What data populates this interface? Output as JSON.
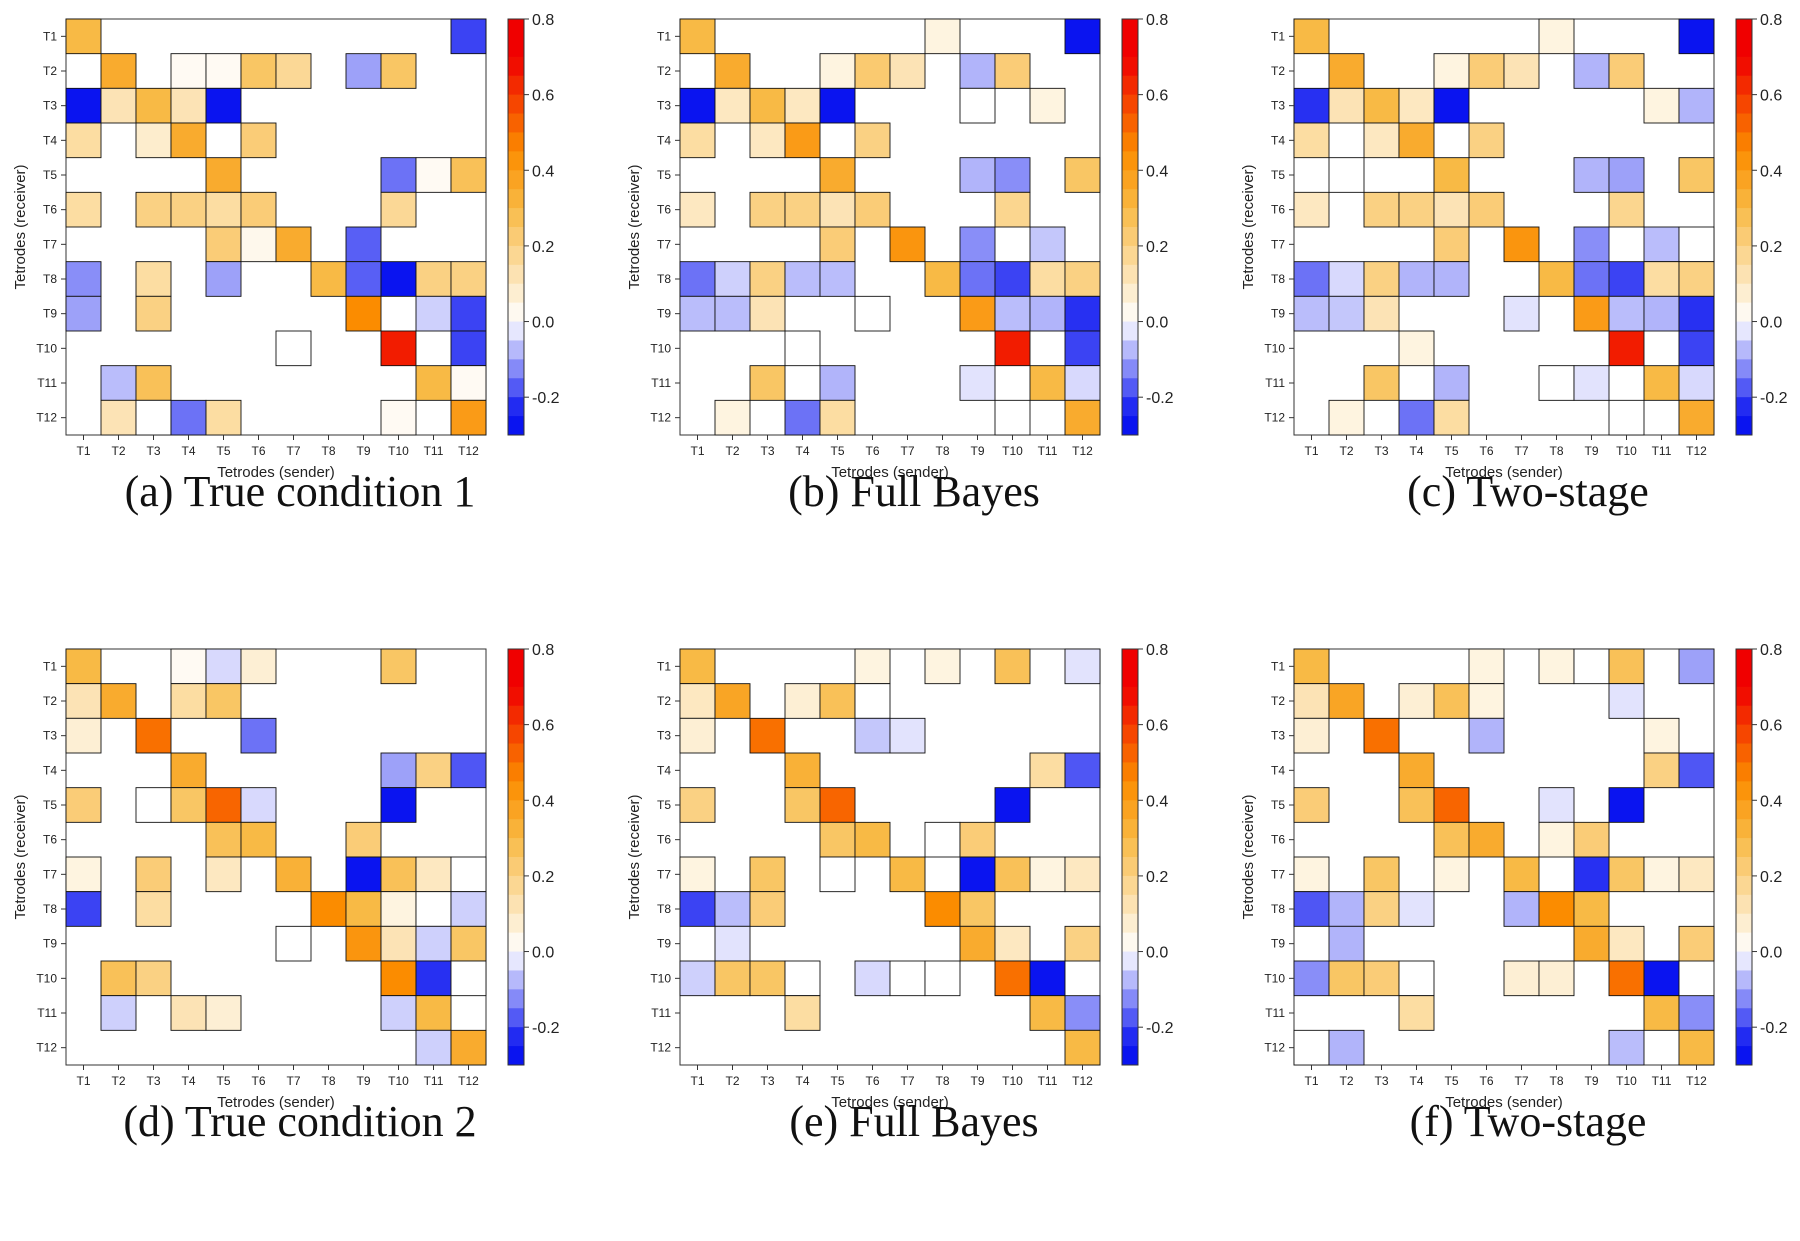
{
  "figure": {
    "color_scale": {
      "min": -0.3,
      "max": 0.8,
      "ticks": [
        -0.2,
        0.0,
        0.2,
        0.4,
        0.6,
        0.8
      ],
      "tick_labels": [
        "-0.2",
        "0.0",
        "0.2",
        "0.4",
        "0.6",
        "0.8"
      ]
    },
    "colors": {
      "negative_end": "#0a14f0",
      "neutral": "#ffffff",
      "mid_positive": "#f8ba45",
      "strong_positive": "#fb8c00",
      "positive_end": "#f00000"
    }
  },
  "chart_data": [
    {
      "type": "heatmap",
      "caption": "(a) True condition 1",
      "xlabel": "Tetrodes (sender)",
      "ylabel": "Tetrodes (receiver)",
      "x_labels": [
        "T1",
        "T2",
        "T3",
        "T4",
        "T5",
        "T6",
        "T7",
        "T8",
        "T9",
        "T10",
        "T11",
        "T12"
      ],
      "y_labels": [
        "T1",
        "T2",
        "T3",
        "T4",
        "T5",
        "T6",
        "T7",
        "T8",
        "T9",
        "T10",
        "T11",
        "T12"
      ],
      "values": [
        [
          0.3,
          null,
          null,
          null,
          null,
          null,
          null,
          null,
          null,
          null,
          null,
          -0.2
        ],
        [
          null,
          0.35,
          null,
          0.02,
          0.02,
          0.25,
          0.17,
          null,
          -0.1,
          0.25,
          null,
          null
        ],
        [
          -0.25,
          0.12,
          0.3,
          0.12,
          -0.25,
          null,
          null,
          null,
          null,
          null,
          null,
          null
        ],
        [
          0.15,
          null,
          0.08,
          0.35,
          null,
          0.22,
          null,
          null,
          null,
          null,
          null,
          null
        ],
        [
          null,
          null,
          null,
          null,
          0.35,
          null,
          null,
          null,
          null,
          -0.15,
          0.02,
          0.27
        ],
        [
          0.15,
          null,
          0.2,
          0.2,
          0.15,
          0.22,
          null,
          null,
          null,
          0.17,
          null,
          null
        ],
        [
          null,
          null,
          null,
          null,
          0.22,
          0.03,
          0.35,
          null,
          -0.17,
          null,
          null,
          null
        ],
        [
          -0.12,
          null,
          0.15,
          null,
          -0.1,
          null,
          null,
          0.3,
          -0.17,
          -0.25,
          0.2,
          0.2
        ],
        [
          -0.1,
          null,
          0.2,
          null,
          null,
          null,
          null,
          null,
          0.45,
          null,
          -0.05,
          -0.2
        ],
        [
          null,
          null,
          null,
          null,
          null,
          null,
          0.0,
          null,
          null,
          0.65,
          null,
          -0.2
        ],
        [
          null,
          -0.07,
          0.27,
          null,
          null,
          null,
          null,
          null,
          null,
          null,
          0.3,
          0.02
        ],
        [
          null,
          0.12,
          0.0,
          -0.15,
          0.15,
          null,
          null,
          null,
          null,
          0.02,
          null,
          0.4
        ]
      ]
    },
    {
      "type": "heatmap",
      "caption": "(b) Full Bayes",
      "xlabel": "Tetrodes (sender)",
      "ylabel": "Tetrodes (receiver)",
      "x_labels": [
        "T1",
        "T2",
        "T3",
        "T4",
        "T5",
        "T6",
        "T7",
        "T8",
        "T9",
        "T10",
        "T11",
        "T12"
      ],
      "y_labels": [
        "T1",
        "T2",
        "T3",
        "T4",
        "T5",
        "T6",
        "T7",
        "T8",
        "T9",
        "T10",
        "T11",
        "T12"
      ],
      "values": [
        [
          0.3,
          null,
          null,
          null,
          null,
          null,
          null,
          0.05,
          null,
          null,
          null,
          -0.25
        ],
        [
          null,
          0.35,
          null,
          null,
          0.05,
          0.23,
          0.12,
          null,
          -0.08,
          0.22,
          null,
          null
        ],
        [
          -0.25,
          0.1,
          0.3,
          0.1,
          -0.25,
          null,
          null,
          null,
          0.0,
          null,
          0.05,
          null
        ],
        [
          0.15,
          null,
          0.1,
          0.4,
          null,
          0.2,
          null,
          null,
          null,
          null,
          null,
          null
        ],
        [
          null,
          null,
          null,
          null,
          0.35,
          null,
          null,
          null,
          -0.08,
          -0.12,
          null,
          0.25
        ],
        [
          0.1,
          null,
          0.2,
          0.2,
          0.12,
          0.22,
          null,
          null,
          null,
          0.18,
          null,
          null
        ],
        [
          null,
          null,
          null,
          null,
          0.22,
          null,
          0.42,
          null,
          -0.12,
          null,
          -0.06,
          null
        ],
        [
          -0.15,
          -0.05,
          0.2,
          -0.07,
          -0.07,
          null,
          null,
          0.3,
          -0.15,
          -0.2,
          0.15,
          0.2
        ],
        [
          -0.07,
          -0.07,
          0.12,
          null,
          null,
          0.0,
          null,
          null,
          0.4,
          -0.07,
          -0.08,
          -0.22
        ],
        [
          null,
          null,
          null,
          0.0,
          null,
          null,
          null,
          null,
          null,
          0.65,
          null,
          -0.2
        ],
        [
          null,
          null,
          0.25,
          null,
          -0.08,
          null,
          null,
          null,
          -0.03,
          null,
          0.3,
          -0.04
        ],
        [
          null,
          0.05,
          null,
          -0.15,
          0.15,
          null,
          null,
          null,
          null,
          0.0,
          null,
          0.35
        ]
      ]
    },
    {
      "type": "heatmap",
      "caption": "(c) Two-stage",
      "xlabel": "Tetrodes (sender)",
      "ylabel": "Tetrodes (receiver)",
      "x_labels": [
        "T1",
        "T2",
        "T3",
        "T4",
        "T5",
        "T6",
        "T7",
        "T8",
        "T9",
        "T10",
        "T11",
        "T12"
      ],
      "y_labels": [
        "T1",
        "T2",
        "T3",
        "T4",
        "T5",
        "T6",
        "T7",
        "T8",
        "T9",
        "T10",
        "T11",
        "T12"
      ],
      "values": [
        [
          0.3,
          null,
          null,
          null,
          null,
          null,
          null,
          0.05,
          null,
          null,
          null,
          -0.25
        ],
        [
          null,
          0.35,
          null,
          null,
          0.05,
          0.22,
          0.12,
          null,
          -0.08,
          0.22,
          null,
          null
        ],
        [
          -0.22,
          0.12,
          0.3,
          0.1,
          -0.25,
          null,
          null,
          null,
          null,
          null,
          0.05,
          -0.08
        ],
        [
          0.15,
          null,
          0.1,
          0.35,
          null,
          0.2,
          null,
          null,
          null,
          null,
          null,
          null
        ],
        [
          null,
          0.0,
          null,
          null,
          0.3,
          null,
          null,
          null,
          -0.08,
          -0.1,
          null,
          0.25
        ],
        [
          0.1,
          null,
          0.2,
          0.2,
          0.12,
          0.22,
          null,
          null,
          null,
          0.18,
          null,
          null
        ],
        [
          null,
          null,
          null,
          null,
          0.22,
          null,
          0.42,
          null,
          -0.12,
          null,
          -0.07,
          0.0
        ],
        [
          -0.15,
          -0.04,
          0.2,
          -0.08,
          -0.08,
          null,
          null,
          0.3,
          -0.15,
          -0.2,
          0.15,
          0.2
        ],
        [
          -0.07,
          -0.06,
          0.12,
          null,
          null,
          null,
          -0.03,
          null,
          0.4,
          -0.07,
          -0.08,
          -0.22
        ],
        [
          null,
          null,
          null,
          0.05,
          null,
          null,
          null,
          null,
          null,
          0.65,
          null,
          -0.2
        ],
        [
          null,
          null,
          0.25,
          null,
          -0.08,
          null,
          null,
          0.0,
          -0.03,
          null,
          0.3,
          -0.04
        ],
        [
          null,
          0.05,
          null,
          -0.15,
          0.15,
          null,
          null,
          null,
          null,
          0.0,
          null,
          0.35
        ]
      ]
    },
    {
      "type": "heatmap",
      "caption": "(d) True condition 2",
      "xlabel": "Tetrodes (sender)",
      "ylabel": "Tetrodes (receiver)",
      "x_labels": [
        "T1",
        "T2",
        "T3",
        "T4",
        "T5",
        "T6",
        "T7",
        "T8",
        "T9",
        "T10",
        "T11",
        "T12"
      ],
      "y_labels": [
        "T1",
        "T2",
        "T3",
        "T4",
        "T5",
        "T6",
        "T7",
        "T8",
        "T9",
        "T10",
        "T11",
        "T12"
      ],
      "values": [
        [
          0.3,
          null,
          null,
          0.02,
          -0.04,
          0.07,
          null,
          null,
          null,
          0.25,
          null,
          null
        ],
        [
          0.12,
          0.35,
          null,
          0.15,
          0.25,
          null,
          null,
          null,
          null,
          null,
          null,
          null
        ],
        [
          0.07,
          null,
          0.5,
          null,
          null,
          -0.15,
          null,
          null,
          null,
          null,
          null,
          null
        ],
        [
          null,
          null,
          null,
          0.35,
          null,
          null,
          null,
          null,
          null,
          -0.1,
          0.2,
          -0.18
        ],
        [
          0.22,
          null,
          0.0,
          0.25,
          0.52,
          -0.04,
          null,
          null,
          null,
          -0.25,
          null,
          null
        ],
        [
          null,
          null,
          null,
          null,
          0.27,
          0.3,
          null,
          null,
          0.22,
          null,
          null,
          null
        ],
        [
          0.05,
          null,
          0.22,
          null,
          0.1,
          null,
          0.33,
          null,
          -0.25,
          0.27,
          0.1,
          0.0
        ],
        [
          -0.2,
          null,
          0.15,
          null,
          null,
          null,
          null,
          0.45,
          0.3,
          0.05,
          0.0,
          -0.05
        ],
        [
          null,
          null,
          null,
          null,
          null,
          null,
          0.0,
          null,
          0.42,
          0.12,
          -0.05,
          0.25
        ],
        [
          null,
          0.27,
          0.2,
          null,
          null,
          null,
          null,
          null,
          null,
          0.45,
          -0.22,
          0.0
        ],
        [
          null,
          -0.05,
          null,
          0.12,
          0.07,
          null,
          null,
          null,
          null,
          -0.05,
          0.3,
          null
        ],
        [
          null,
          null,
          null,
          null,
          null,
          null,
          null,
          null,
          null,
          null,
          -0.05,
          0.35
        ]
      ]
    },
    {
      "type": "heatmap",
      "caption": "(e) Full Bayes",
      "xlabel": "Tetrodes (sender)",
      "ylabel": "Tetrodes (receiver)",
      "x_labels": [
        "T1",
        "T2",
        "T3",
        "T4",
        "T5",
        "T6",
        "T7",
        "T8",
        "T9",
        "T10",
        "T11",
        "T12"
      ],
      "y_labels": [
        "T1",
        "T2",
        "T3",
        "T4",
        "T5",
        "T6",
        "T7",
        "T8",
        "T9",
        "T10",
        "T11",
        "T12"
      ],
      "values": [
        [
          0.3,
          null,
          null,
          null,
          null,
          0.05,
          null,
          0.05,
          null,
          0.27,
          null,
          -0.03
        ],
        [
          0.1,
          0.37,
          null,
          0.07,
          0.27,
          0.0,
          null,
          null,
          null,
          null,
          null,
          null
        ],
        [
          0.07,
          null,
          0.5,
          null,
          null,
          -0.06,
          -0.03,
          null,
          null,
          null,
          null,
          null
        ],
        [
          null,
          null,
          null,
          0.33,
          null,
          null,
          null,
          null,
          null,
          null,
          0.15,
          -0.18
        ],
        [
          0.2,
          null,
          null,
          0.25,
          0.52,
          null,
          null,
          null,
          null,
          -0.25,
          null,
          null
        ],
        [
          null,
          null,
          null,
          null,
          0.25,
          0.3,
          null,
          0.0,
          0.22,
          null,
          null,
          null
        ],
        [
          0.05,
          null,
          0.25,
          null,
          0.0,
          null,
          0.3,
          null,
          -0.25,
          0.27,
          0.05,
          0.1
        ],
        [
          -0.2,
          -0.07,
          0.22,
          null,
          null,
          null,
          null,
          0.45,
          0.25,
          null,
          null,
          null
        ],
        [
          null,
          -0.03,
          null,
          null,
          null,
          null,
          null,
          null,
          0.35,
          0.1,
          null,
          0.2
        ],
        [
          -0.05,
          0.25,
          0.25,
          0.0,
          null,
          -0.04,
          0.0,
          0.0,
          null,
          0.5,
          -0.25,
          null
        ],
        [
          null,
          null,
          null,
          0.15,
          null,
          null,
          null,
          null,
          null,
          null,
          0.3,
          -0.12
        ],
        [
          null,
          null,
          null,
          null,
          null,
          null,
          null,
          null,
          null,
          null,
          null,
          0.3
        ]
      ]
    },
    {
      "type": "heatmap",
      "caption": "(f) Two-stage",
      "xlabel": "Tetrodes (sender)",
      "ylabel": "Tetrodes (receiver)",
      "x_labels": [
        "T1",
        "T2",
        "T3",
        "T4",
        "T5",
        "T6",
        "T7",
        "T8",
        "T9",
        "T10",
        "T11",
        "T12"
      ],
      "y_labels": [
        "T1",
        "T2",
        "T3",
        "T4",
        "T5",
        "T6",
        "T7",
        "T8",
        "T9",
        "T10",
        "T11",
        "T12"
      ],
      "values": [
        [
          0.3,
          null,
          null,
          null,
          null,
          0.05,
          null,
          0.05,
          0.0,
          0.27,
          null,
          -0.1
        ],
        [
          0.12,
          0.37,
          null,
          0.07,
          0.27,
          0.05,
          null,
          null,
          null,
          -0.03,
          null,
          null
        ],
        [
          0.07,
          null,
          0.5,
          null,
          null,
          -0.08,
          null,
          null,
          null,
          null,
          0.05,
          null
        ],
        [
          null,
          null,
          null,
          0.35,
          null,
          null,
          null,
          null,
          null,
          null,
          0.2,
          -0.18
        ],
        [
          0.22,
          null,
          null,
          0.27,
          0.52,
          null,
          null,
          -0.03,
          null,
          -0.25,
          null,
          null
        ],
        [
          null,
          null,
          null,
          null,
          0.27,
          0.35,
          null,
          0.05,
          0.22,
          null,
          null,
          null
        ],
        [
          0.05,
          null,
          0.25,
          null,
          0.05,
          null,
          0.3,
          null,
          -0.22,
          0.25,
          0.05,
          0.1
        ],
        [
          -0.18,
          -0.08,
          0.2,
          -0.03,
          null,
          null,
          -0.08,
          0.45,
          0.3,
          null,
          null,
          null
        ],
        [
          null,
          -0.08,
          null,
          null,
          null,
          null,
          null,
          null,
          0.35,
          0.1,
          null,
          0.22
        ],
        [
          -0.12,
          0.25,
          0.22,
          0.0,
          null,
          null,
          0.07,
          0.07,
          null,
          0.5,
          -0.25,
          null
        ],
        [
          null,
          null,
          null,
          0.15,
          null,
          null,
          null,
          null,
          null,
          null,
          0.3,
          -0.12
        ],
        [
          0.0,
          -0.08,
          null,
          null,
          null,
          null,
          null,
          null,
          null,
          -0.07,
          null,
          0.3
        ]
      ]
    }
  ]
}
